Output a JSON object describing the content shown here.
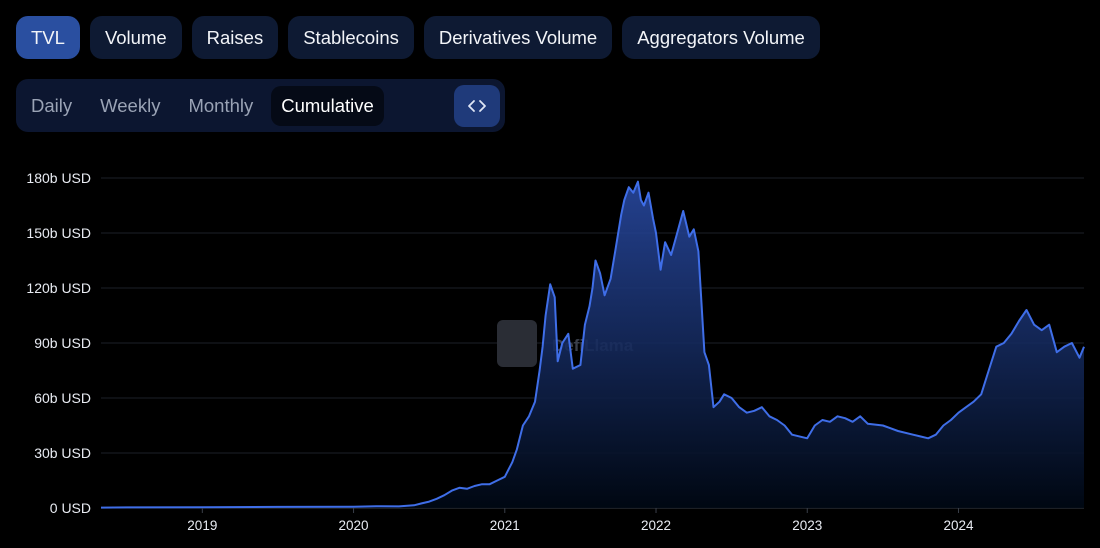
{
  "metric_tabs": [
    {
      "label": "TVL",
      "active": true
    },
    {
      "label": "Volume",
      "active": false
    },
    {
      "label": "Raises",
      "active": false
    },
    {
      "label": "Stablecoins",
      "active": false
    },
    {
      "label": "Derivatives Volume",
      "active": false
    },
    {
      "label": "Aggregators Volume",
      "active": false
    }
  ],
  "period_tabs": [
    {
      "label": "Daily",
      "active": false
    },
    {
      "label": "Weekly",
      "active": false
    },
    {
      "label": "Monthly",
      "active": false
    },
    {
      "label": "Cumulative",
      "active": true
    }
  ],
  "embed_button": {
    "icon": "code-embed-icon",
    "label": "<>"
  },
  "watermark": "DefiLlama",
  "colors": {
    "line": "#3f6ee8",
    "area_top": "#2a4ca8",
    "active_tab": "#2a4fa0",
    "tab_bg": "#0e1a33",
    "background": "#000000"
  },
  "chart_data": {
    "type": "area",
    "title": "",
    "xlabel": "",
    "ylabel": "",
    "unit": "USD",
    "x_ticks": [
      "2019",
      "2020",
      "2021",
      "2022",
      "2023",
      "2024"
    ],
    "y_ticks": [
      "0 USD",
      "30b USD",
      "60b USD",
      "90b USD",
      "120b USD",
      "150b USD",
      "180b USD"
    ],
    "ylim": [
      0,
      180
    ],
    "xlim": [
      2018.33,
      2024.83
    ],
    "grid": true,
    "series": [
      {
        "name": "",
        "x": [
          2018.33,
          2018.5,
          2019.0,
          2019.5,
          2020.0,
          2020.15,
          2020.3,
          2020.4,
          2020.45,
          2020.5,
          2020.55,
          2020.6,
          2020.65,
          2020.7,
          2020.75,
          2020.8,
          2020.85,
          2020.9,
          2020.95,
          2021.0,
          2021.05,
          2021.08,
          2021.12,
          2021.16,
          2021.2,
          2021.23,
          2021.25,
          2021.27,
          2021.3,
          2021.33,
          2021.35,
          2021.38,
          2021.42,
          2021.45,
          2021.5,
          2021.53,
          2021.56,
          2021.58,
          2021.6,
          2021.63,
          2021.66,
          2021.7,
          2021.73,
          2021.75,
          2021.77,
          2021.79,
          2021.82,
          2021.85,
          2021.88,
          2021.9,
          2021.92,
          2021.95,
          2021.98,
          2022.0,
          2022.03,
          2022.06,
          2022.1,
          2022.14,
          2022.18,
          2022.22,
          2022.25,
          2022.28,
          2022.32,
          2022.35,
          2022.38,
          2022.42,
          2022.45,
          2022.5,
          2022.55,
          2022.6,
          2022.65,
          2022.7,
          2022.75,
          2022.8,
          2022.85,
          2022.9,
          2023.0,
          2023.05,
          2023.1,
          2023.15,
          2023.2,
          2023.25,
          2023.3,
          2023.35,
          2023.4,
          2023.5,
          2023.6,
          2023.7,
          2023.75,
          2023.8,
          2023.85,
          2023.9,
          2023.95,
          2024.0,
          2024.05,
          2024.1,
          2024.15,
          2024.2,
          2024.25,
          2024.3,
          2024.35,
          2024.4,
          2024.45,
          2024.5,
          2024.55,
          2024.6,
          2024.65,
          2024.7,
          2024.75,
          2024.8,
          2024.83
        ],
        "values": [
          0.2,
          0.3,
          0.4,
          0.6,
          0.7,
          1.0,
          0.9,
          1.5,
          2.5,
          3.5,
          5.0,
          7.0,
          9.5,
          11.0,
          10.5,
          12.0,
          13.0,
          13.0,
          15.0,
          17.0,
          25.0,
          32.0,
          45.0,
          50.0,
          58.0,
          75.0,
          88.0,
          105.0,
          122.0,
          115.0,
          80.0,
          90.0,
          95.0,
          76.0,
          78.0,
          100.0,
          110.0,
          120.0,
          135.0,
          128.0,
          116.0,
          125.0,
          140.0,
          150.0,
          160.0,
          168.0,
          175.0,
          172.0,
          178.0,
          168.0,
          165.0,
          172.0,
          158.0,
          150.0,
          130.0,
          145.0,
          138.0,
          150.0,
          162.0,
          148.0,
          152.0,
          140.0,
          85.0,
          78.0,
          55.0,
          58.0,
          62.0,
          60.0,
          55.0,
          52.0,
          53.0,
          55.0,
          50.0,
          48.0,
          45.0,
          40.0,
          38.0,
          45.0,
          48.0,
          47.0,
          50.0,
          49.0,
          47.0,
          50.0,
          46.0,
          45.0,
          42.0,
          40.0,
          39.0,
          38.0,
          40.0,
          45.0,
          48.0,
          52.0,
          55.0,
          58.0,
          62.0,
          75.0,
          88.0,
          90.0,
          95.0,
          102.0,
          108.0,
          100.0,
          97.0,
          100.0,
          85.0,
          88.0,
          90.0,
          82.0,
          88.0
        ]
      }
    ]
  }
}
